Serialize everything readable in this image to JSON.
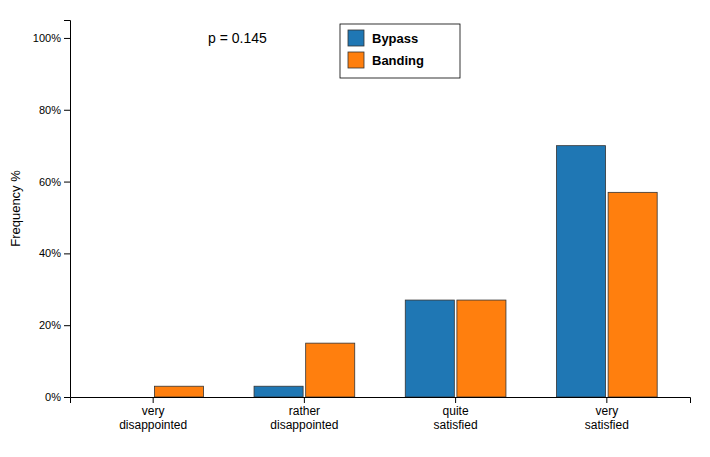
{
  "chart_data": {
    "type": "bar",
    "categories": [
      "very\ndisappointed",
      "rather\ndisappointed",
      "quite\nsatisfied",
      "very\nsatisfied"
    ],
    "series": [
      {
        "name": "Bypass",
        "values": [
          0,
          3,
          27,
          70
        ]
      },
      {
        "name": "Banding",
        "values": [
          3,
          15,
          27,
          57
        ]
      }
    ],
    "y_label": "Frequency %",
    "annotation": "p = 0.145",
    "ylim": [
      0,
      105
    ],
    "yticks": [
      {
        "value": 0,
        "label": "0%"
      },
      {
        "value": 20,
        "label": "20%"
      },
      {
        "value": 40,
        "label": "40%"
      },
      {
        "value": 60,
        "label": "60%"
      },
      {
        "value": 80,
        "label": "80%"
      },
      {
        "value": 100,
        "label": "100%"
      }
    ],
    "legend": "upper center",
    "grid": false
  }
}
